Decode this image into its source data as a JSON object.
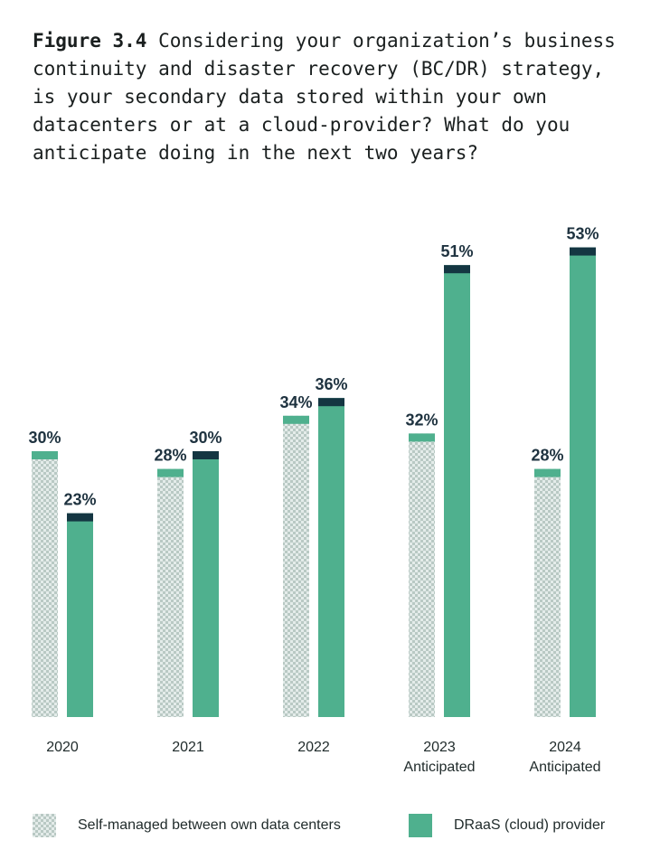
{
  "figure": {
    "label": "Figure 3.4",
    "text": "Considering your organization’s business continuity and disaster recovery (BC/DR) strategy, is your secondary data stored within your own datacenters or at a cloud-provider? What do you anticipate doing in the next two years?"
  },
  "colors": {
    "self_managed_base": "#e4ecea",
    "self_managed_pattern": "#b9c9c4",
    "self_managed_cap": "#4fb08e",
    "draas_fill": "#4fb08e",
    "draas_cap": "#143642",
    "text_dark": "#1f3340"
  },
  "chart_data": {
    "type": "bar",
    "categories": [
      [
        "2020"
      ],
      [
        "2021"
      ],
      [
        "2022"
      ],
      [
        "2023",
        "Anticipated"
      ],
      [
        "2024",
        "Anticipated"
      ]
    ],
    "series": [
      {
        "name": "Self-managed between own data centers",
        "values": [
          30,
          28,
          34,
          32,
          28
        ],
        "labels": [
          "30%",
          "28%",
          "34%",
          "32%",
          "28%"
        ]
      },
      {
        "name": "DRaaS (cloud) provider",
        "values": [
          23,
          30,
          36,
          51,
          53
        ],
        "labels": [
          "23%",
          "30%",
          "36%",
          "51%",
          "53%"
        ]
      }
    ],
    "ylim": [
      0,
      60
    ],
    "grid": false,
    "legend": "bottom",
    "ylabel": "",
    "xlabel": ""
  }
}
